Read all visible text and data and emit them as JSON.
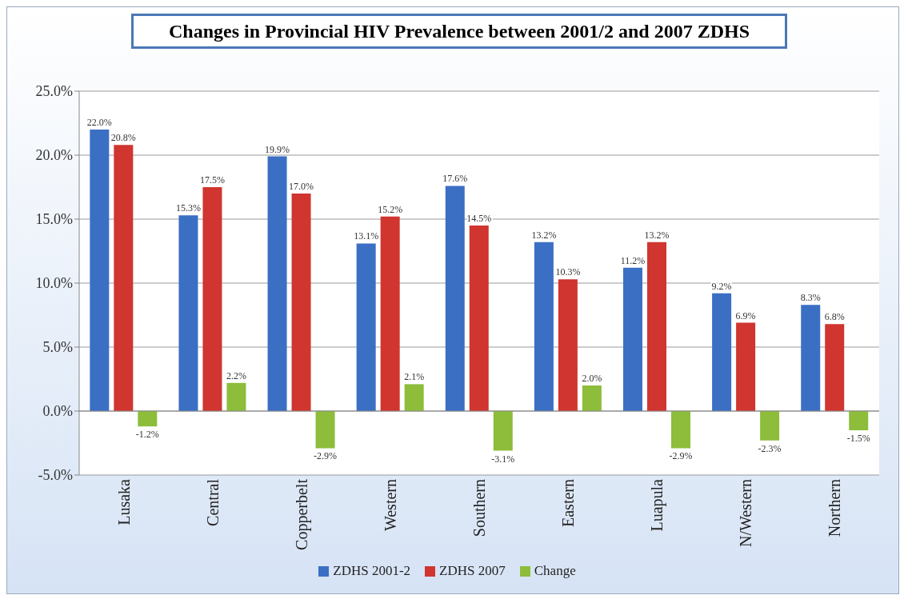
{
  "chart_data": {
    "type": "bar",
    "title": "Changes in Provincial HIV Prevalence between 2001/2 and 2007 ZDHS",
    "categories": [
      "Lusaka",
      "Central",
      "Copperbelt",
      "Western",
      "Southern",
      "Eastern",
      "Luapula",
      "N/Western",
      "Northern"
    ],
    "series": [
      {
        "name": "ZDHS 2001-2",
        "color": "#3a6fc4",
        "values": [
          22.0,
          15.3,
          19.9,
          13.1,
          17.6,
          13.2,
          11.2,
          9.2,
          8.3
        ],
        "value_labels": [
          "22.0%",
          "15.3%",
          "19.9%",
          "13.1%",
          "17.6%",
          "13.2%",
          "11.2%",
          "9.2%",
          "8.3%"
        ]
      },
      {
        "name": "ZDHS 2007",
        "color": "#d0352f",
        "values": [
          20.8,
          17.5,
          17.0,
          15.2,
          14.5,
          10.3,
          13.2,
          6.9,
          6.8
        ],
        "value_labels": [
          "20.8%",
          "17.5%",
          "17.0%",
          "15.2%",
          "14.5%",
          "10.3%",
          "13.2%",
          "6.9%",
          "6.8%"
        ]
      },
      {
        "name": "Change",
        "color": "#8dbd3a",
        "values": [
          -1.2,
          2.2,
          -2.9,
          2.1,
          -3.1,
          2.0,
          -2.9,
          -2.3,
          -1.5
        ],
        "value_labels": [
          "-1.2%",
          "2.2%",
          "-2.9%",
          "2.1%",
          "-3.1%",
          "2.0%",
          "-2.9%",
          "-2.3%",
          "-1.5%"
        ]
      }
    ],
    "ylim": [
      -5,
      25
    ],
    "yticks": [
      {
        "value": -5,
        "label": "-5.0%"
      },
      {
        "value": 0,
        "label": "0.0%"
      },
      {
        "value": 5,
        "label": "5.0%"
      },
      {
        "value": 10,
        "label": "10.0%"
      },
      {
        "value": 15,
        "label": "15.0%"
      },
      {
        "value": 20,
        "label": "20.0%"
      },
      {
        "value": 25,
        "label": "25.0%"
      }
    ],
    "grid": "y",
    "legend": "bottom"
  }
}
